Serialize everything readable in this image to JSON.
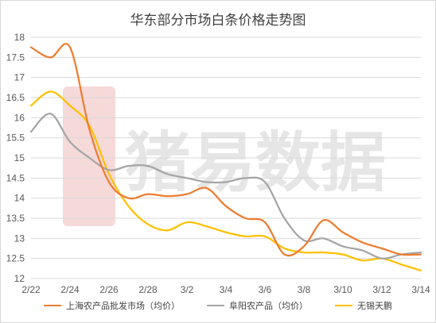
{
  "chart_data": {
    "type": "line",
    "title": "华东部分市场白条价格走势图",
    "watermark": "猪易数据",
    "x": [
      "2/22",
      "2/23",
      "2/24",
      "2/25",
      "2/26",
      "2/27",
      "2/28",
      "3/1",
      "3/2",
      "3/3",
      "3/4",
      "3/5",
      "3/6",
      "3/7",
      "3/8",
      "3/9",
      "3/10",
      "3/11",
      "3/12",
      "3/13",
      "3/14"
    ],
    "xticks": [
      "2/22",
      "2/24",
      "2/26",
      "2/28",
      "3/2",
      "3/4",
      "3/6",
      "3/8",
      "3/10",
      "3/12",
      "3/14"
    ],
    "ylim": [
      12,
      18
    ],
    "yticks": [
      "12",
      "12.5",
      "13",
      "13.5",
      "14",
      "14.5",
      "15",
      "15.5",
      "16",
      "16.5",
      "17",
      "17.5",
      "18"
    ],
    "grid": true,
    "legend_position": "bottom",
    "series": [
      {
        "name": "上海农产品批发市场（均价）",
        "color": "#ed7d31",
        "values": [
          17.75,
          17.5,
          17.75,
          15.7,
          14.4,
          14.0,
          14.1,
          14.05,
          14.1,
          14.25,
          13.8,
          13.5,
          13.4,
          12.6,
          12.8,
          13.45,
          13.15,
          12.9,
          12.75,
          12.6,
          12.6
        ]
      },
      {
        "name": "阜阳农产品（均价）",
        "color": "#a5a5a5",
        "values": [
          15.65,
          16.1,
          15.4,
          15.0,
          14.7,
          14.8,
          14.8,
          14.6,
          14.5,
          14.4,
          14.4,
          14.5,
          14.4,
          13.5,
          12.95,
          13.0,
          12.8,
          12.7,
          12.5,
          12.6,
          12.65
        ]
      },
      {
        "name": "无锡天鹏",
        "color": "#ffc000",
        "values": [
          16.3,
          16.65,
          16.3,
          15.8,
          14.6,
          13.8,
          13.35,
          13.2,
          13.4,
          13.3,
          13.15,
          13.05,
          13.05,
          12.75,
          12.65,
          12.65,
          12.6,
          12.45,
          12.5,
          12.35,
          12.2
        ]
      }
    ]
  }
}
